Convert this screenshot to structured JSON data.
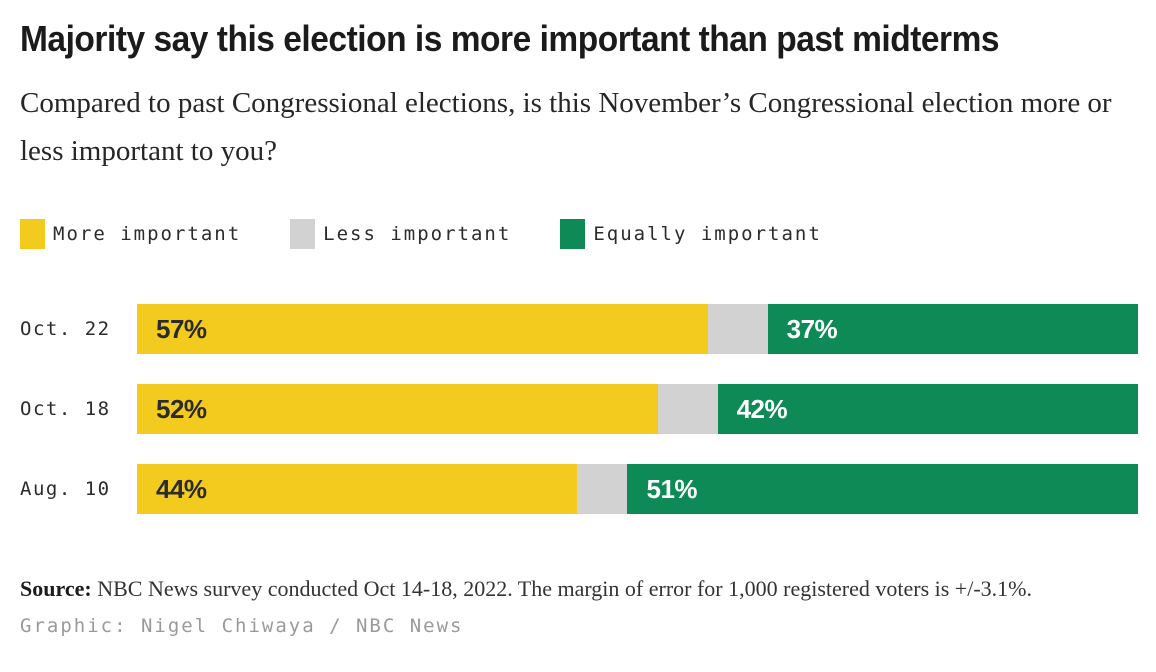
{
  "header": {
    "title": "Majority say this election is more important than past midterms",
    "subtitle": "Compared to past Congressional elections, is this November’s Congressional election more or less important to you?"
  },
  "chart_data": {
    "type": "bar",
    "orientation": "horizontal",
    "stacked": true,
    "unit": "%",
    "xlim": [
      0,
      100
    ],
    "grid": false,
    "legend_position": "top",
    "categories": [
      "Oct. 22",
      "Oct. 18",
      "Aug. 10"
    ],
    "series": [
      {
        "name": "More important",
        "color": "#F2CB1E",
        "values": [
          57,
          52,
          44
        ],
        "labels": [
          "57%",
          "52%",
          "44%"
        ],
        "label_color": "#2B2B2B"
      },
      {
        "name": "Less important",
        "color": "#D2D2D2",
        "values": [
          6,
          6,
          5
        ],
        "labels": [
          "",
          "",
          ""
        ],
        "label_color": ""
      },
      {
        "name": "Equally important",
        "color": "#0E8A57",
        "values": [
          37,
          42,
          51
        ],
        "labels": [
          "37%",
          "42%",
          "51%"
        ],
        "label_color": "#FFFFFF"
      }
    ]
  },
  "footer": {
    "source_label": "Source:",
    "source_text": " NBC News survey conducted Oct 14-18, 2022. The margin of error for 1,000 registered voters is +/-3.1%.",
    "credit": "Graphic: Nigel Chiwaya / NBC News"
  }
}
